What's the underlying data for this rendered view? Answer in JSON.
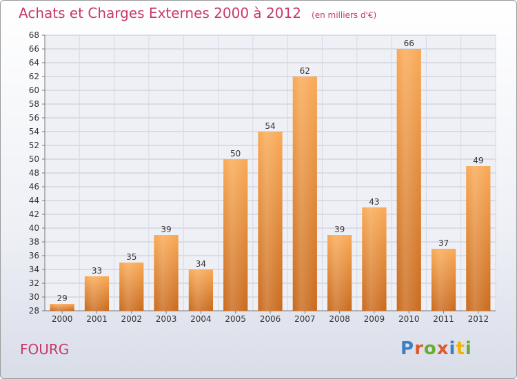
{
  "header": {
    "title": "Achats et Charges Externes 2000 à 2012",
    "subtitle": "(en milliers d'€)"
  },
  "footer": {
    "commune": "FOURG",
    "logo_text": "Proxiti"
  },
  "colors": {
    "title": "#c8386b",
    "bar_light": "#f7a24e",
    "bar_dark": "#c96a1c",
    "logo": [
      "#3b7fc4",
      "#e0582b",
      "#6aab2e",
      "#e0582b",
      "#3b7fc4",
      "#f0b400",
      "#6aab2e"
    ]
  },
  "chart_data": {
    "type": "bar",
    "title": "Achats et Charges Externes 2000 à 2012",
    "subtitle": "(en milliers d'€)",
    "categories": [
      "2000",
      "2001",
      "2002",
      "2003",
      "2004",
      "2005",
      "2006",
      "2007",
      "2008",
      "2009",
      "2010",
      "2011",
      "2012"
    ],
    "values": [
      29,
      33,
      35,
      39,
      34,
      50,
      54,
      62,
      39,
      43,
      66,
      37,
      49
    ],
    "ylim": [
      28,
      68
    ],
    "ytick_step": 2,
    "grid": true,
    "data_labels": true
  }
}
